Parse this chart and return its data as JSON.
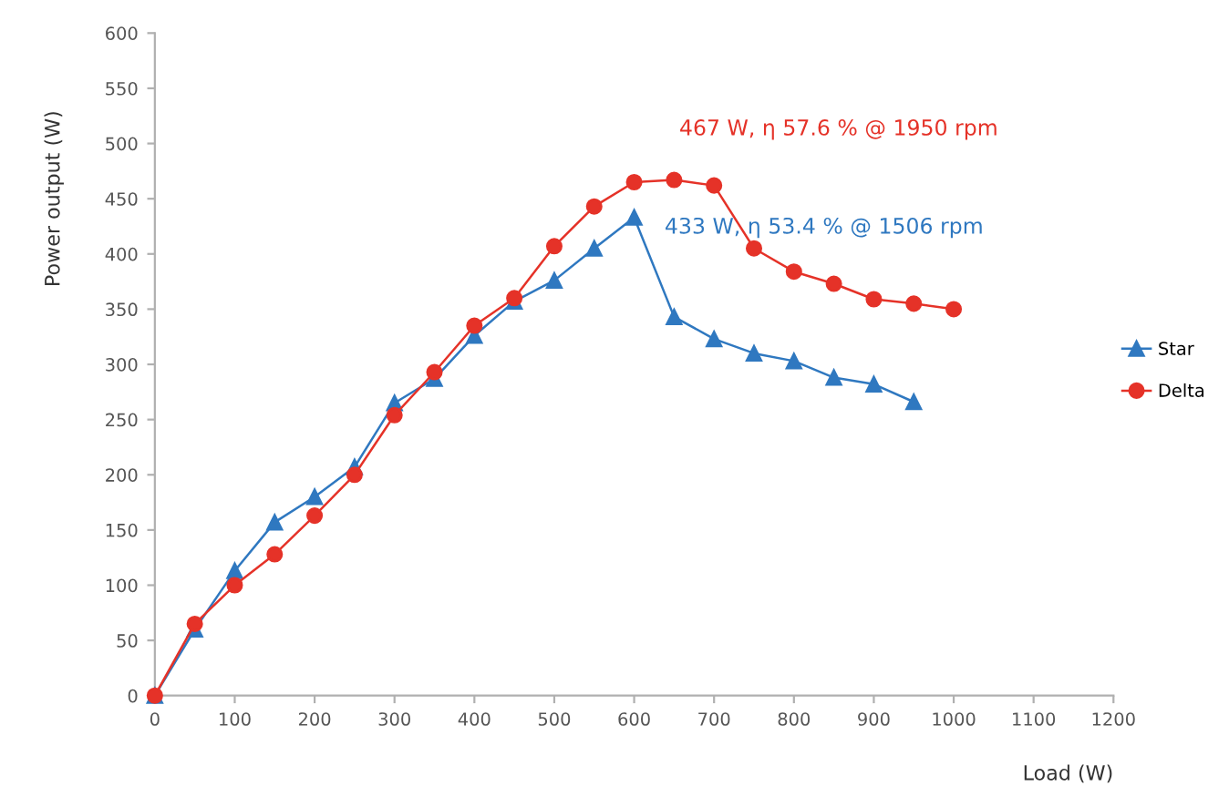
{
  "chart_data": {
    "type": "line",
    "xlabel": "Load (W)",
    "ylabel": "Power output (W)",
    "x": [
      0,
      50,
      100,
      150,
      200,
      250,
      300,
      350,
      400,
      450,
      500,
      550,
      600,
      650,
      700,
      750,
      800,
      850,
      900,
      950,
      1000
    ],
    "series": [
      {
        "name": "Star",
        "color": "#2f78c0",
        "marker": "triangle",
        "values": [
          0,
          60,
          113,
          157,
          180,
          207,
          265,
          287,
          326,
          357,
          376,
          405,
          433,
          343,
          323,
          310,
          303,
          288,
          282,
          266,
          null
        ]
      },
      {
        "name": "Delta",
        "color": "#e53228",
        "marker": "circle",
        "values": [
          0,
          65,
          100,
          128,
          163,
          200,
          254,
          293,
          335,
          360,
          407,
          443,
          465,
          467,
          462,
          405,
          384,
          373,
          359,
          355,
          350
        ]
      }
    ],
    "annotations": [
      {
        "text": "467 W, η 57.6 % @ 1950 rpm",
        "x": 650,
        "y": 467
      },
      {
        "text": "433 W, η 53.4 % @ 1506 rpm",
        "x": 600,
        "y": 433
      }
    ],
    "xlim": [
      0,
      1200
    ],
    "xticks": [
      0,
      100,
      200,
      300,
      400,
      500,
      600,
      700,
      800,
      900,
      1000,
      1100,
      1200
    ],
    "ylim": [
      0,
      600
    ],
    "yticks": [
      0,
      50,
      100,
      150,
      200,
      250,
      300,
      350,
      400,
      450,
      500,
      550,
      600
    ],
    "grid": false,
    "legend": "right",
    "line_style": "solid"
  }
}
